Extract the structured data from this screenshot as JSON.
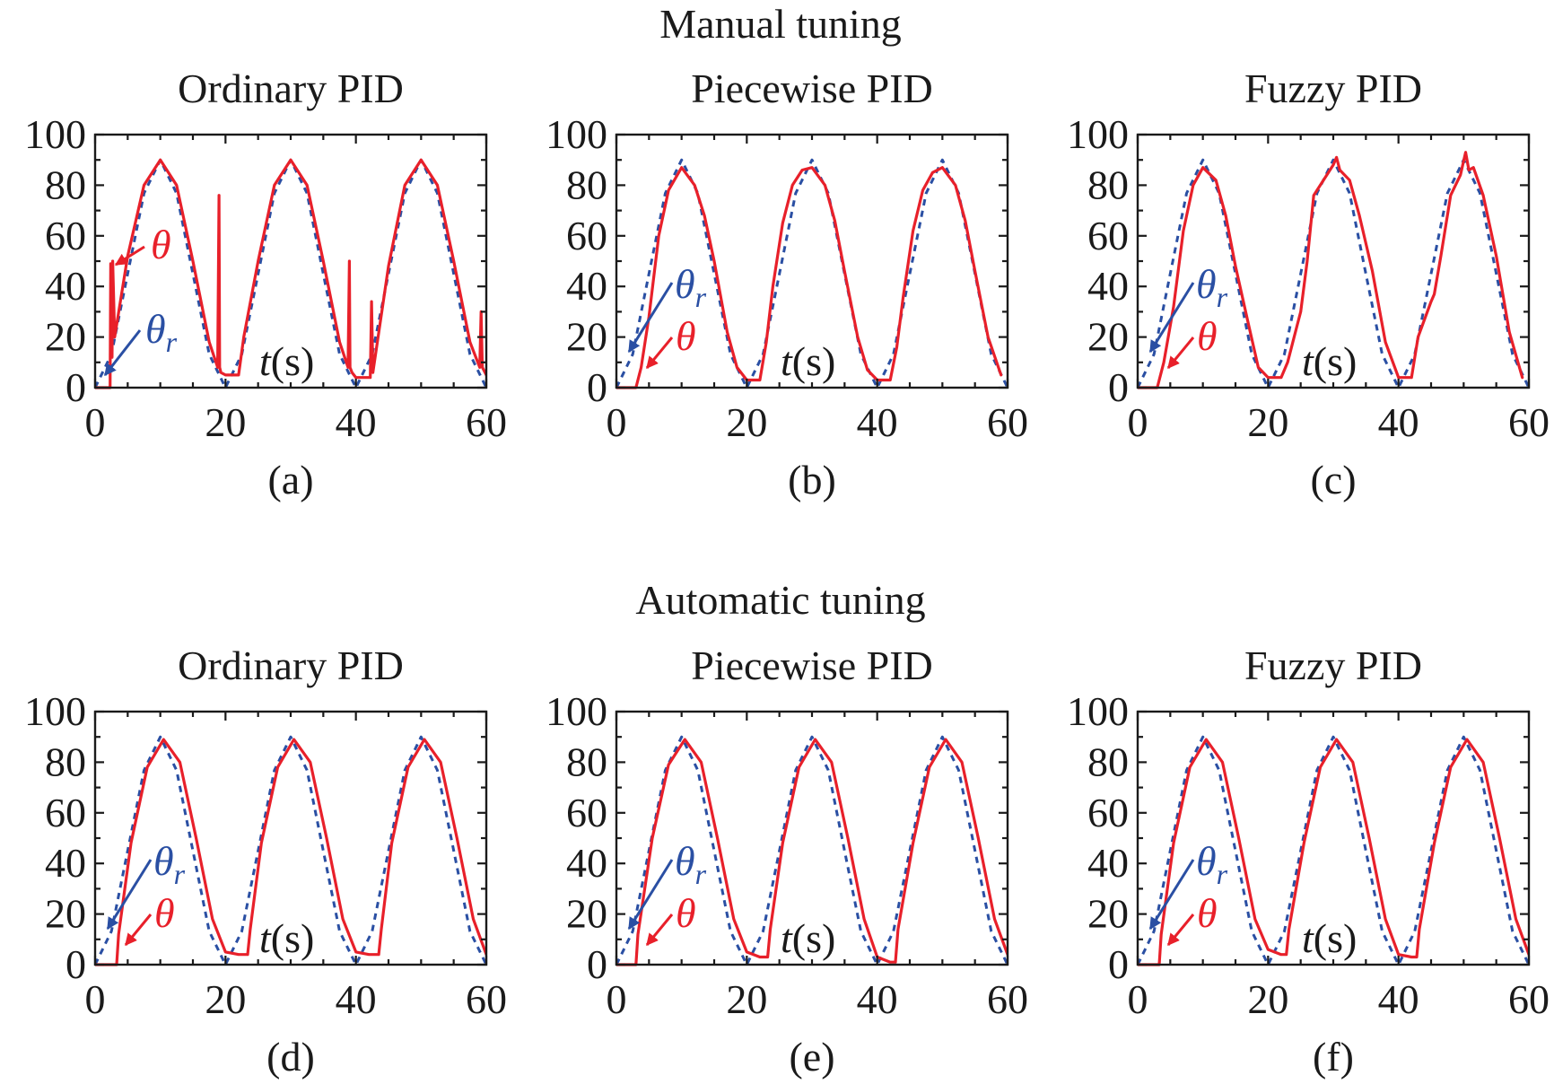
{
  "figure": {
    "row_titles": [
      "Manual tuning",
      "Automatic tuning"
    ]
  },
  "colors": {
    "measured": "#e8202a",
    "reference": "#2a4fa3",
    "axis": "#1a1a1a"
  },
  "chart_data": [
    {
      "type": "line",
      "panel_label": "(a)",
      "title": "Ordinary PID",
      "row_title": "Manual tuning",
      "xlabel_var": "t",
      "xlabel_unit": "(s)",
      "xlim": [
        0,
        60
      ],
      "ylim": [
        0,
        100
      ],
      "xticks": [
        0,
        20,
        40,
        60
      ],
      "yticks": [
        0,
        20,
        40,
        60,
        80,
        100
      ],
      "grid": false,
      "legend": "inline annotations",
      "annotations": {
        "measured_symbol": "θ",
        "reference_symbol": "θ",
        "reference_subscript": "r"
      },
      "series": [
        {
          "key": "reference",
          "style": "dashed",
          "x": [
            0,
            2.5,
            5,
            7.5,
            10,
            12.5,
            15,
            17.5,
            20,
            22.5,
            25,
            27.5,
            30,
            32.5,
            35,
            37.5,
            40,
            42.5,
            45,
            47.5,
            50,
            52.5,
            55,
            57.5,
            60
          ],
          "y": [
            0,
            13.2,
            45,
            76.8,
            90,
            76.8,
            45,
            13.2,
            0,
            13.2,
            45,
            76.8,
            90,
            76.8,
            45,
            13.2,
            0,
            13.2,
            45,
            76.8,
            90,
            76.8,
            45,
            13.2,
            0
          ]
        },
        {
          "key": "measured",
          "style": "solid",
          "x": [
            0,
            2.3,
            2.4,
            2.6,
            2.7,
            3,
            5,
            7.5,
            10,
            12.5,
            15,
            17.5,
            18.8,
            19,
            19.1,
            19.3,
            20,
            22,
            22.8,
            25,
            27.5,
            30,
            32.5,
            35,
            37.5,
            38.8,
            39,
            39.1,
            39.4,
            40,
            42.2,
            42.4,
            42.6,
            45,
            47.5,
            50,
            52.5,
            55,
            57.5,
            59,
            59.2,
            59.4,
            60
          ],
          "y": [
            0,
            0,
            49,
            12,
            50,
            20,
            52,
            80,
            90,
            80,
            50,
            18,
            8,
            76,
            8,
            6,
            5,
            5,
            20,
            50,
            80,
            90,
            80,
            50,
            18,
            8,
            50,
            8,
            6,
            4,
            4,
            34,
            6,
            48,
            80,
            90,
            80,
            50,
            18,
            8,
            30,
            8,
            5
          ]
        }
      ]
    },
    {
      "type": "line",
      "panel_label": "(b)",
      "title": "Piecewise PID",
      "row_title": "Manual tuning",
      "xlabel_var": "t",
      "xlabel_unit": "(s)",
      "xlim": [
        0,
        60
      ],
      "ylim": [
        0,
        100
      ],
      "xticks": [
        0,
        20,
        40,
        60
      ],
      "yticks": [
        0,
        20,
        40,
        60,
        80,
        100
      ],
      "grid": false,
      "legend": "inline annotations",
      "annotations": {
        "measured_symbol": "θ",
        "reference_symbol": "θ",
        "reference_subscript": "r"
      },
      "series": [
        {
          "key": "reference",
          "style": "dashed",
          "x": [
            0,
            2.5,
            5,
            7.5,
            10,
            12.5,
            15,
            17.5,
            20,
            22.5,
            25,
            27.5,
            30,
            32.5,
            35,
            37.5,
            40,
            42.5,
            45,
            47.5,
            50,
            52.5,
            55,
            57.5,
            60
          ],
          "y": [
            0,
            13.2,
            45,
            76.8,
            90,
            76.8,
            45,
            13.2,
            0,
            13.2,
            45,
            76.8,
            90,
            76.8,
            45,
            13.2,
            0,
            13.2,
            45,
            76.8,
            90,
            76.8,
            45,
            13.2,
            0
          ]
        },
        {
          "key": "measured",
          "style": "solid",
          "x": [
            0,
            3,
            3.8,
            5,
            6.5,
            8,
            10,
            12,
            13.5,
            15,
            17,
            18.5,
            20,
            22,
            23,
            24,
            25.5,
            27,
            28.5,
            30,
            32,
            33.5,
            35,
            37,
            38.5,
            40,
            42,
            43,
            44,
            45.5,
            47,
            48.5,
            50,
            52,
            53.5,
            55,
            57,
            59
          ],
          "y": [
            0,
            0,
            8,
            28,
            60,
            78,
            87,
            80,
            68,
            50,
            22,
            8,
            3,
            3,
            18,
            40,
            65,
            80,
            86,
            87,
            80,
            66,
            46,
            20,
            7,
            3,
            3,
            16,
            36,
            62,
            78,
            85,
            87,
            80,
            66,
            46,
            20,
            5
          ]
        }
      ]
    },
    {
      "type": "line",
      "panel_label": "(c)",
      "title": "Fuzzy PID",
      "row_title": "Manual tuning",
      "xlabel_var": "t",
      "xlabel_unit": "(s)",
      "xlim": [
        0,
        60
      ],
      "ylim": [
        0,
        100
      ],
      "xticks": [
        0,
        20,
        40,
        60
      ],
      "yticks": [
        0,
        20,
        40,
        60,
        80,
        100
      ],
      "grid": false,
      "legend": "inline annotations",
      "annotations": {
        "measured_symbol": "θ",
        "reference_symbol": "θ",
        "reference_subscript": "r"
      },
      "series": [
        {
          "key": "reference",
          "style": "dashed",
          "x": [
            0,
            2.5,
            5,
            7.5,
            10,
            12.5,
            15,
            17.5,
            20,
            22.5,
            25,
            27.5,
            30,
            32.5,
            35,
            37.5,
            40,
            42.5,
            45,
            47.5,
            50,
            52.5,
            55,
            57.5,
            60
          ],
          "y": [
            0,
            13.2,
            45,
            76.8,
            90,
            76.8,
            45,
            13.2,
            0,
            13.2,
            45,
            76.8,
            90,
            76.8,
            45,
            13.2,
            0,
            13.2,
            45,
            76.8,
            90,
            76.8,
            45,
            13.2,
            0
          ]
        },
        {
          "key": "measured",
          "style": "solid",
          "x": [
            0,
            3,
            4,
            5.5,
            7,
            8.5,
            10,
            12,
            13.5,
            15,
            17,
            18.5,
            20,
            22,
            23,
            24.5,
            25,
            26,
            27,
            28.5,
            30,
            30.5,
            31,
            32.5,
            34,
            36,
            38,
            40,
            42,
            43,
            45,
            45.5,
            46.5,
            48,
            49.5,
            50.3,
            50.8,
            51.5,
            53,
            55,
            57,
            59
          ],
          "y": [
            0,
            0,
            10,
            32,
            62,
            80,
            87,
            82,
            68,
            48,
            25,
            8,
            4,
            4,
            10,
            25,
            30,
            50,
            76,
            82,
            88,
            91,
            86,
            82,
            68,
            46,
            18,
            4,
            4,
            20,
            34,
            37,
            52,
            76,
            84,
            93,
            86,
            87,
            76,
            52,
            22,
            4
          ]
        }
      ]
    },
    {
      "type": "line",
      "panel_label": "(d)",
      "title": "Ordinary PID",
      "row_title": "Automatic tuning",
      "xlabel_var": "t",
      "xlabel_unit": "(s)",
      "xlim": [
        0,
        60
      ],
      "ylim": [
        0,
        100
      ],
      "xticks": [
        0,
        20,
        40,
        60
      ],
      "yticks": [
        0,
        20,
        40,
        60,
        80,
        100
      ],
      "grid": false,
      "legend": "inline annotations",
      "annotations": {
        "measured_symbol": "θ",
        "reference_symbol": "θ",
        "reference_subscript": "r"
      },
      "series": [
        {
          "key": "reference",
          "style": "dashed",
          "x": [
            0,
            2.5,
            5,
            7.5,
            10,
            12.5,
            15,
            17.5,
            20,
            22.5,
            25,
            27.5,
            30,
            32.5,
            35,
            37.5,
            40,
            42.5,
            45,
            47.5,
            50,
            52.5,
            55,
            57.5,
            60
          ],
          "y": [
            0,
            13.2,
            45,
            76.8,
            90,
            76.8,
            45,
            13.2,
            0,
            13.2,
            45,
            76.8,
            90,
            76.8,
            45,
            13.2,
            0,
            13.2,
            45,
            76.8,
            90,
            76.8,
            45,
            13.2,
            0
          ]
        },
        {
          "key": "measured",
          "style": "solid",
          "x": [
            0,
            3.3,
            3.6,
            5.5,
            8,
            10.5,
            13,
            15.5,
            18,
            20,
            22,
            23.4,
            23.8,
            25.5,
            28,
            30.5,
            33,
            35.5,
            38,
            40,
            42,
            43.5,
            43.9,
            45.5,
            48,
            50.5,
            53,
            55.5,
            58,
            60
          ],
          "y": [
            0,
            0,
            12,
            48,
            78,
            89,
            80,
            50,
            18,
            5,
            4,
            4,
            14,
            48,
            78,
            89,
            80,
            50,
            18,
            5,
            4,
            4,
            14,
            48,
            78,
            89,
            80,
            50,
            18,
            4
          ]
        }
      ]
    },
    {
      "type": "line",
      "panel_label": "(e)",
      "title": "Piecewise PID",
      "row_title": "Automatic tuning",
      "xlabel_var": "t",
      "xlabel_unit": "(s)",
      "xlim": [
        0,
        60
      ],
      "ylim": [
        0,
        100
      ],
      "xticks": [
        0,
        20,
        40,
        60
      ],
      "yticks": [
        0,
        20,
        40,
        60,
        80,
        100
      ],
      "grid": false,
      "legend": "inline annotations",
      "annotations": {
        "measured_symbol": "θ",
        "reference_symbol": "θ",
        "reference_subscript": "r"
      },
      "series": [
        {
          "key": "reference",
          "style": "dashed",
          "x": [
            0,
            2.5,
            5,
            7.5,
            10,
            12.5,
            15,
            17.5,
            20,
            22.5,
            25,
            27.5,
            30,
            32.5,
            35,
            37.5,
            40,
            42.5,
            45,
            47.5,
            50,
            52.5,
            55,
            57.5,
            60
          ],
          "y": [
            0,
            13.2,
            45,
            76.8,
            90,
            76.8,
            45,
            13.2,
            0,
            13.2,
            45,
            76.8,
            90,
            76.8,
            45,
            13.2,
            0,
            13.2,
            45,
            76.8,
            90,
            76.8,
            45,
            13.2,
            0
          ]
        },
        {
          "key": "measured",
          "style": "solid",
          "x": [
            0,
            3,
            3.3,
            5.5,
            8,
            10.5,
            13,
            15.5,
            18,
            20,
            22,
            23.2,
            23.6,
            25.5,
            28,
            30.5,
            33,
            35.5,
            38,
            40,
            42,
            42.8,
            43.2,
            45.5,
            48,
            50.5,
            53,
            55.5,
            58,
            60
          ],
          "y": [
            0,
            0,
            12,
            50,
            79,
            89,
            80,
            50,
            18,
            5,
            3,
            3,
            14,
            48,
            78,
            89,
            80,
            50,
            18,
            3,
            1,
            1,
            14,
            48,
            78,
            89,
            80,
            50,
            18,
            4
          ]
        }
      ]
    },
    {
      "type": "line",
      "panel_label": "(f)",
      "title": "Fuzzy PID",
      "row_title": "Automatic tuning",
      "xlabel_var": "t",
      "xlabel_unit": "(s)",
      "xlim": [
        0,
        60
      ],
      "ylim": [
        0,
        100
      ],
      "xticks": [
        0,
        20,
        40,
        60
      ],
      "yticks": [
        0,
        20,
        40,
        60,
        80,
        100
      ],
      "grid": false,
      "legend": "inline annotations",
      "annotations": {
        "measured_symbol": "θ",
        "reference_symbol": "θ",
        "reference_subscript": "r"
      },
      "series": [
        {
          "key": "reference",
          "style": "dashed",
          "x": [
            0,
            2.5,
            5,
            7.5,
            10,
            12.5,
            15,
            17.5,
            20,
            22.5,
            25,
            27.5,
            30,
            32.5,
            35,
            37.5,
            40,
            42.5,
            45,
            47.5,
            50,
            52.5,
            55,
            57.5,
            60
          ],
          "y": [
            0,
            13.2,
            45,
            76.8,
            90,
            76.8,
            45,
            13.2,
            0,
            13.2,
            45,
            76.8,
            90,
            76.8,
            45,
            13.2,
            0,
            13.2,
            45,
            76.8,
            90,
            76.8,
            45,
            13.2,
            0
          ]
        },
        {
          "key": "measured",
          "style": "solid",
          "x": [
            0,
            3.3,
            3.6,
            5.5,
            8,
            10.5,
            13,
            15.5,
            18,
            20,
            22,
            22.8,
            23.2,
            25.5,
            28,
            30.5,
            33,
            35.5,
            38,
            40,
            42,
            42.8,
            43.2,
            45.5,
            48,
            50.5,
            53,
            55.5,
            58,
            60
          ],
          "y": [
            0,
            0,
            12,
            48,
            78,
            89,
            80,
            50,
            18,
            6,
            4,
            4,
            14,
            48,
            78,
            89,
            80,
            50,
            18,
            4,
            3,
            3,
            14,
            48,
            78,
            89,
            80,
            50,
            18,
            4
          ]
        }
      ]
    }
  ]
}
